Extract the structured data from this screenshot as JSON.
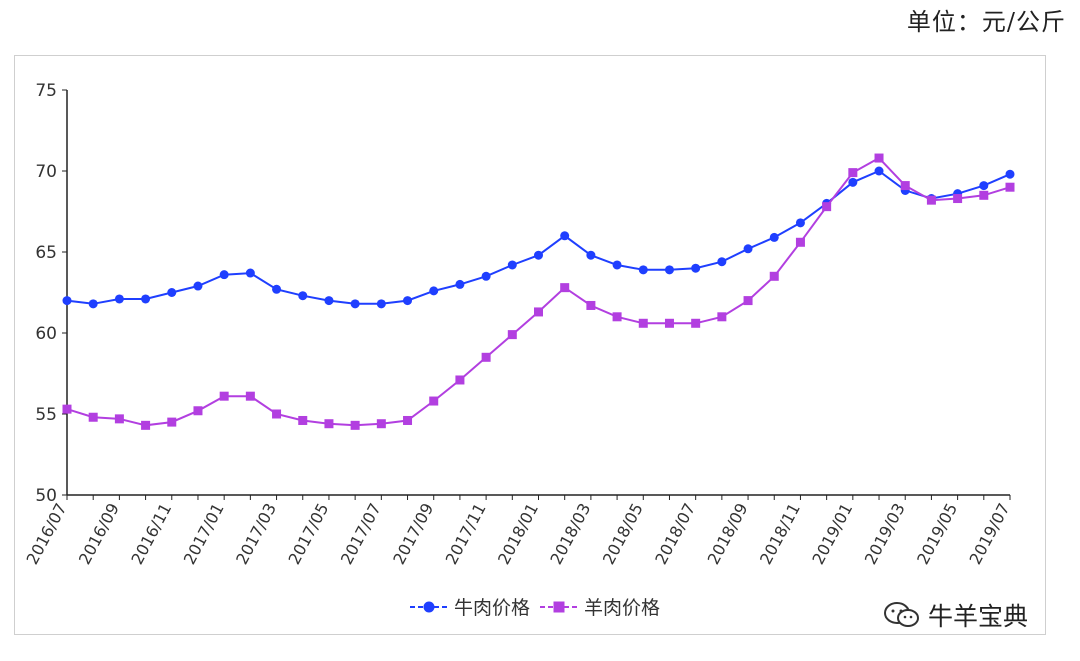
{
  "unit_label": "单位：元/公斤",
  "watermark": {
    "text": "牛羊宝典",
    "icon": "wechat-icon"
  },
  "colors": {
    "beef": "#1f3fff",
    "mutton": "#b23fe0",
    "axis": "#222222",
    "text": "#333333"
  },
  "chart_data": {
    "type": "line",
    "title": "",
    "xlabel": "",
    "ylabel": "",
    "ylim": [
      50,
      75
    ],
    "yticks": [
      50,
      55,
      60,
      65,
      70,
      75
    ],
    "grid": false,
    "legend_position": "bottom-center",
    "x": [
      "2016/07",
      "2016/08",
      "2016/09",
      "2016/10",
      "2016/11",
      "2016/12",
      "2017/01",
      "2017/02",
      "2017/03",
      "2017/04",
      "2017/05",
      "2017/06",
      "2017/07",
      "2017/08",
      "2017/09",
      "2017/10",
      "2017/11",
      "2017/12",
      "2018/01",
      "2018/02",
      "2018/03",
      "2018/04",
      "2018/05",
      "2018/06",
      "2018/07",
      "2018/08",
      "2018/09",
      "2018/10",
      "2018/11",
      "2018/12",
      "2019/01",
      "2019/02",
      "2019/03",
      "2019/04",
      "2019/05",
      "2019/06",
      "2019/07"
    ],
    "xtick_labels": [
      "2016/07",
      "2016/09",
      "2016/11",
      "2017/01",
      "2017/03",
      "2017/05",
      "2017/07",
      "2017/09",
      "2017/11",
      "2018/01",
      "2018/03",
      "2018/05",
      "2018/07",
      "2018/09",
      "2018/11",
      "2019/01",
      "2019/03",
      "2019/05",
      "2019/07"
    ],
    "series": [
      {
        "name": "牛肉价格",
        "marker": "circle",
        "values": [
          62.0,
          61.8,
          62.1,
          62.1,
          62.5,
          62.9,
          63.6,
          63.7,
          62.7,
          62.3,
          62.0,
          61.8,
          61.8,
          62.0,
          62.6,
          63.0,
          63.5,
          64.2,
          64.8,
          66.0,
          64.8,
          64.2,
          63.9,
          63.9,
          64.0,
          64.4,
          65.2,
          65.9,
          66.8,
          68.0,
          69.3,
          70.0,
          68.8,
          68.3,
          68.6,
          69.1,
          69.8
        ]
      },
      {
        "name": "羊肉价格",
        "marker": "square",
        "values": [
          55.3,
          54.8,
          54.7,
          54.3,
          54.5,
          55.2,
          56.1,
          56.1,
          55.0,
          54.6,
          54.4,
          54.3,
          54.4,
          54.6,
          55.8,
          57.1,
          58.5,
          59.9,
          61.3,
          62.8,
          61.7,
          61.0,
          60.6,
          60.6,
          60.6,
          61.0,
          62.0,
          63.5,
          65.6,
          67.8,
          69.9,
          70.8,
          69.1,
          68.2,
          68.3,
          68.5,
          69.0
        ]
      }
    ]
  }
}
